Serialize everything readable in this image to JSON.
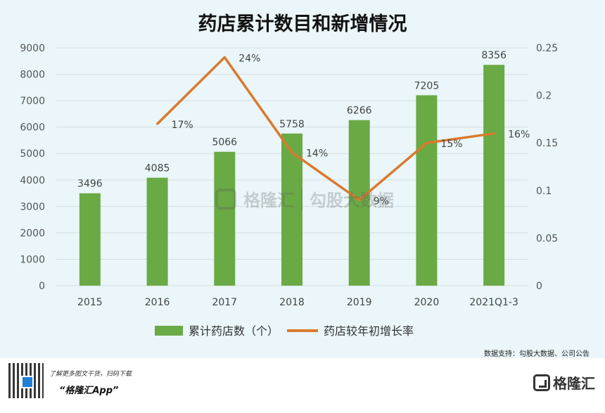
{
  "title": "药店累计数目和新增情况",
  "source_note": "数据支持：勾股大数据、公司公告",
  "footer": {
    "line1": "了解更多图文干货，扫码下载",
    "line2": "“格隆汇App”",
    "brand": "格隆汇"
  },
  "watermark": {
    "brand": "格隆汇",
    "partner": "勾股大数据"
  },
  "colors": {
    "bar": "#6aaa45",
    "line": "#d97a2e",
    "background": "#eaf6f9",
    "grid": "#d7dde0"
  },
  "chart_data": {
    "type": "bar",
    "title": "药店累计数目和新增情况",
    "categories": [
      "2015",
      "2016",
      "2017",
      "2018",
      "2019",
      "2020",
      "2021Q1-3"
    ],
    "series": [
      {
        "name": "累计药店数（个）",
        "type": "bar",
        "axis": "left",
        "values": [
          3496,
          4085,
          5066,
          5758,
          6266,
          7205,
          8356
        ]
      },
      {
        "name": "药店较年初增长率",
        "type": "line",
        "axis": "right",
        "values": [
          null,
          0.17,
          0.24,
          0.14,
          0.09,
          0.15,
          0.16
        ],
        "labels": [
          "",
          "17%",
          "24%",
          "14%",
          "9%",
          "15%",
          "16%"
        ]
      }
    ],
    "ylim_left": [
      0,
      9000
    ],
    "yticks_left": [
      "0",
      "1000",
      "2000",
      "3000",
      "4000",
      "5000",
      "6000",
      "7000",
      "8000",
      "9000"
    ],
    "ylim_right": [
      0,
      0.25
    ],
    "yticks_right": [
      "0",
      "0.05",
      "0.1",
      "0.15",
      "0.2",
      "0.25"
    ],
    "grid": true,
    "legend_position": "bottom"
  }
}
